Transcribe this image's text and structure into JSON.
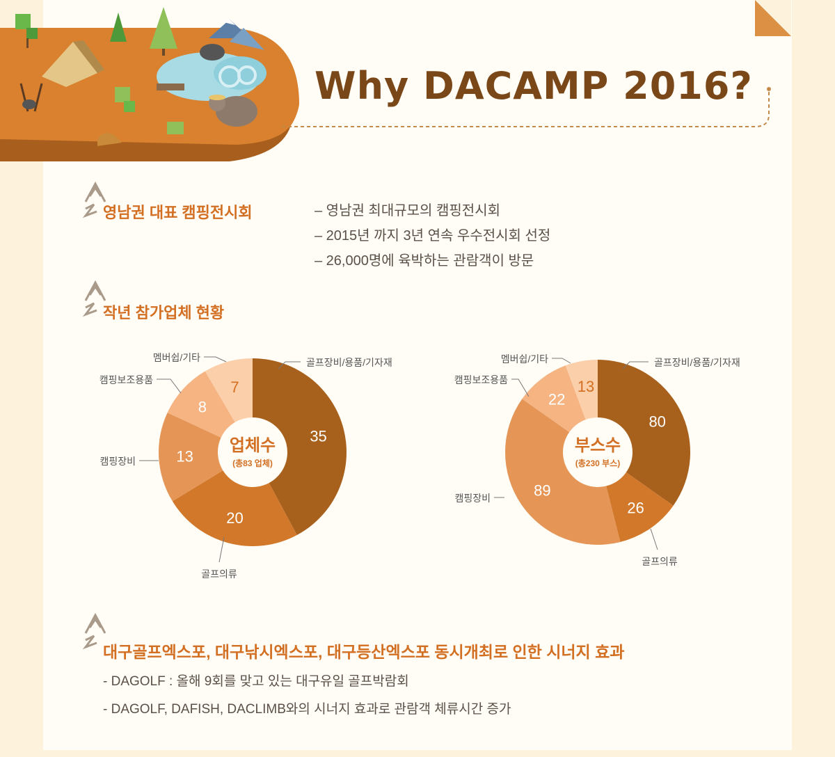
{
  "header": {
    "title": "Why DACAMP 2016?"
  },
  "sections": [
    {
      "heading": "영남권 대표 캠핑전시회",
      "bullets": [
        "– 영남권 최대규모의 캠핑전시회",
        "– 2015년 까지 3년 연속 우수전시회 선정",
        "– 26,000명에 육박하는 관람객이 방문"
      ]
    },
    {
      "heading": "작년 참가업체 현황"
    },
    {
      "heading": "대구골프엑스포, 대구낚시엑스포, 대구등산엑스포 동시개최로 인한 시너지 효과",
      "bullets": [
        "- DAGOLF : 올해 9회를 맞고 있는 대구유일 골프박람회",
        "- DAGOLF, DAFISH, DACLIMB와의 시너지 효과로 관람객 체류시간 증가"
      ]
    }
  ],
  "colors": {
    "segments": [
      "#a8611d",
      "#d2782a",
      "#e59556",
      "#f5b482",
      "#fbcfa9"
    ],
    "accent": "#d36f22",
    "title": "#7a4718"
  },
  "chart_data": [
    {
      "type": "pie",
      "center_title": "업체수",
      "center_subtitle": "(총83 업체)",
      "categories": [
        "골프장비/용품/기자재",
        "골프의류",
        "캠핑장비",
        "캠핑보조용품",
        "멤버쉽/기타"
      ],
      "values": [
        35,
        20,
        13,
        8,
        7
      ]
    },
    {
      "type": "pie",
      "center_title": "부스수",
      "center_subtitle": "(총230 부스)",
      "categories": [
        "골프장비/용품/기자재",
        "골프의류",
        "캠핑장비",
        "캠핑보조용품",
        "멤버쉽/기타"
      ],
      "values": [
        80,
        26,
        89,
        22,
        13
      ]
    }
  ]
}
